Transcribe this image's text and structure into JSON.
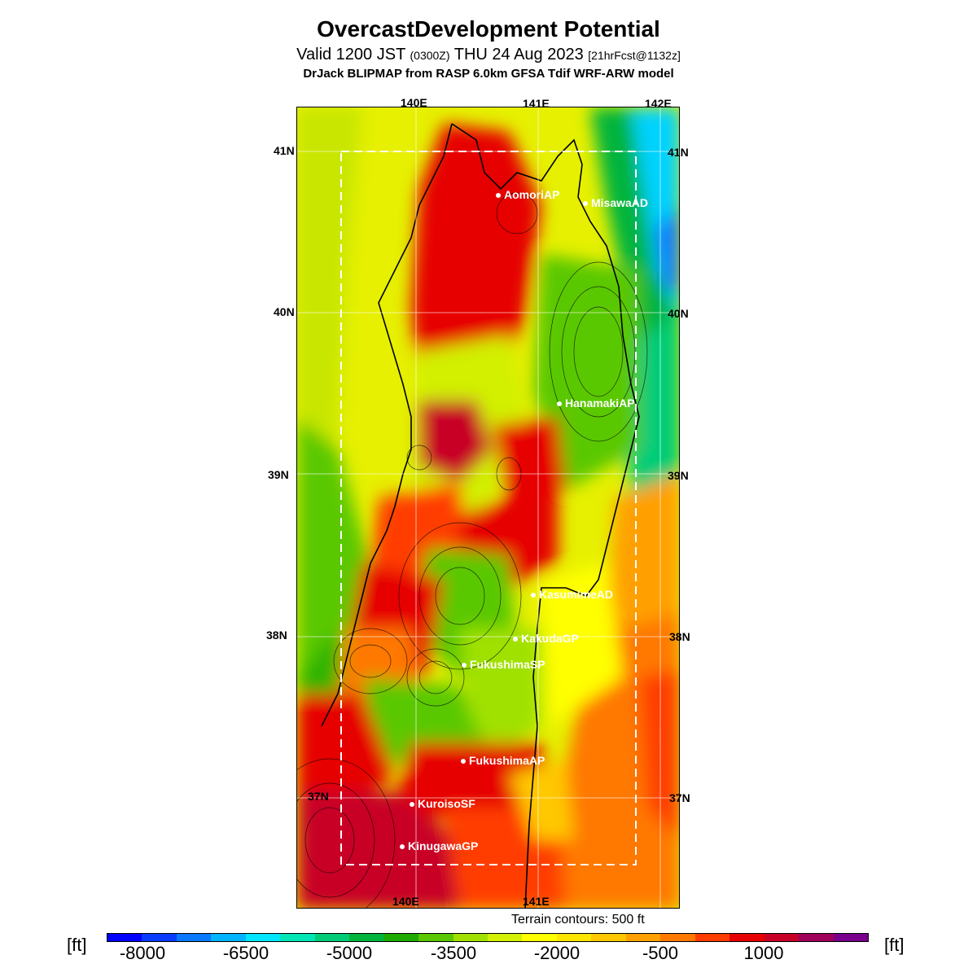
{
  "title": "OvercastDevelopment Potential",
  "subtitle_main": "Valid 1200 JST",
  "subtitle_utc": "(0300Z)",
  "subtitle_date": "THU 24 Aug 2023",
  "subtitle_fcst": "[21hrFcst@1132z]",
  "model_line": "DrJack BLIPMAP from RASP 6.0km GFSA Tdif WRF-ARW model",
  "lon_labels_top": [
    "140E",
    "141E",
    "142E"
  ],
  "lon_labels_bottom": [
    "140E",
    "141E"
  ],
  "lat_labels_left": [
    "41N",
    "40N",
    "39N",
    "38N",
    "37N"
  ],
  "lat_labels_right": [
    "41N",
    "40N",
    "39N",
    "38N",
    "37N"
  ],
  "stations": [
    {
      "name": "AomoriAP"
    },
    {
      "name": "MisawaAD"
    },
    {
      "name": "HanamakiAP"
    },
    {
      "name": "KasumimeAD"
    },
    {
      "name": "KakudaGP"
    },
    {
      "name": "FukushimaSP"
    },
    {
      "name": "FukushimaAP"
    },
    {
      "name": "KuroisoSF"
    },
    {
      "name": "KinugawaGP"
    }
  ],
  "terrain_note": "Terrain contours: 500 ft",
  "unit_left": "[ft]",
  "unit_right": "[ft]",
  "colorbar_ticks": [
    "-8000",
    "-6500",
    "-5000",
    "-3500",
    "-2000",
    "-500",
    "1000"
  ],
  "colorbar_colors": [
    "#0000ff",
    "#0a3cff",
    "#0a78ff",
    "#00b4ff",
    "#00e6ff",
    "#00e6b4",
    "#00cc78",
    "#00b43c",
    "#1eaa00",
    "#5ac800",
    "#a0e100",
    "#d2f000",
    "#ffff00",
    "#ffe600",
    "#ffc800",
    "#ffa000",
    "#ff7800",
    "#ff3c00",
    "#e60000",
    "#c80028",
    "#a0005a",
    "#78008c"
  ]
}
